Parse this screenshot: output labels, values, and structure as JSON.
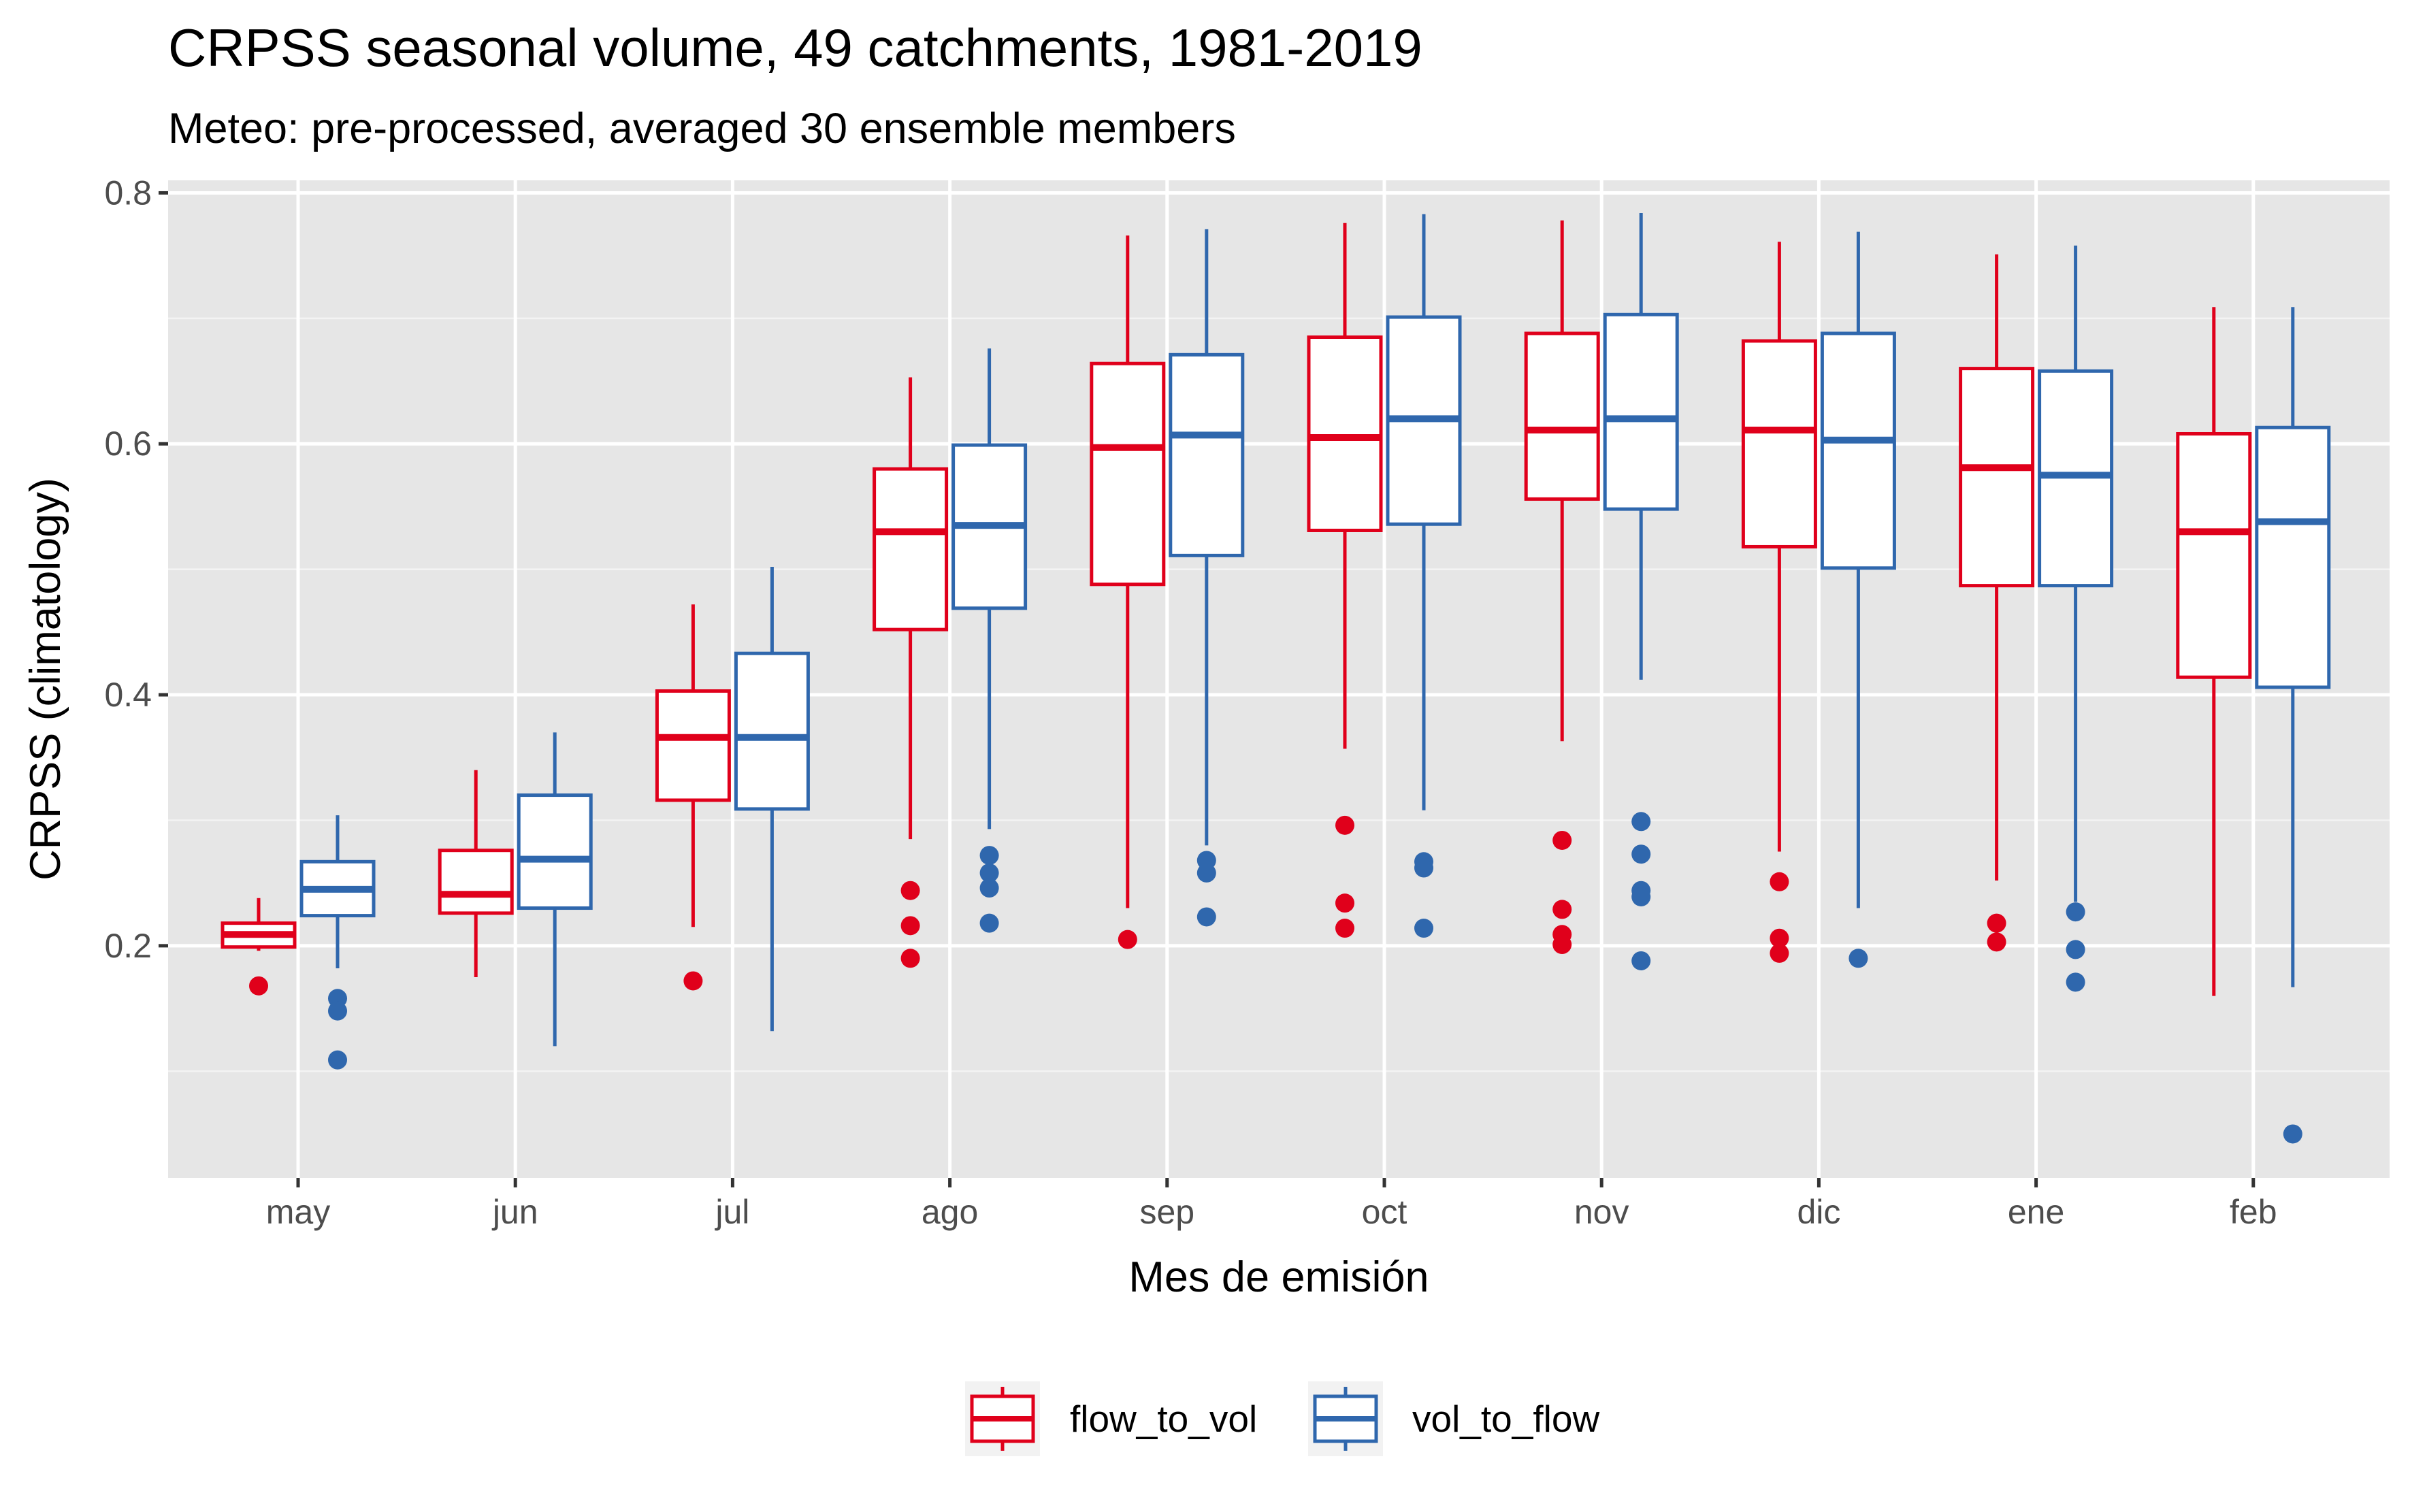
{
  "chart_data": {
    "type": "box",
    "title": "CRPSS seasonal volume, 49 catchments, 1981-2019",
    "subtitle": "Meteo: pre-processed, averaged 30 ensemble members",
    "xlabel": "Mes de emisión",
    "ylabel": "CRPSS (climatology)",
    "ylim": [
      0.015,
      0.81
    ],
    "y_ticks": [
      0.2,
      0.4,
      0.6,
      0.8
    ],
    "y_tick_labels": [
      "0.2",
      "0.4",
      "0.6",
      "0.8"
    ],
    "grid": true,
    "legend_position": "bottom",
    "categories": [
      "may",
      "jun",
      "jul",
      "ago",
      "sep",
      "oct",
      "nov",
      "dic",
      "ene",
      "feb"
    ],
    "series": [
      {
        "name": "flow_to_vol",
        "color": "#e0001b",
        "boxes": [
          {
            "min": 0.196,
            "q1": 0.199,
            "median": 0.209,
            "q3": 0.218,
            "max": 0.238,
            "outliers": [
              0.168
            ]
          },
          {
            "min": 0.175,
            "q1": 0.226,
            "median": 0.241,
            "q3": 0.276,
            "max": 0.34,
            "outliers": []
          },
          {
            "min": 0.215,
            "q1": 0.316,
            "median": 0.366,
            "q3": 0.403,
            "max": 0.472,
            "outliers": [
              0.172
            ]
          },
          {
            "min": 0.285,
            "q1": 0.452,
            "median": 0.53,
            "q3": 0.58,
            "max": 0.653,
            "outliers": [
              0.244,
              0.216,
              0.19
            ]
          },
          {
            "min": 0.23,
            "q1": 0.488,
            "median": 0.597,
            "q3": 0.664,
            "max": 0.766,
            "outliers": [
              0.205
            ]
          },
          {
            "min": 0.357,
            "q1": 0.531,
            "median": 0.605,
            "q3": 0.685,
            "max": 0.776,
            "outliers": [
              0.296,
              0.234,
              0.214
            ]
          },
          {
            "min": 0.363,
            "q1": 0.556,
            "median": 0.611,
            "q3": 0.688,
            "max": 0.778,
            "outliers": [
              0.284,
              0.229,
              0.209,
              0.201
            ]
          },
          {
            "min": 0.275,
            "q1": 0.518,
            "median": 0.611,
            "q3": 0.682,
            "max": 0.761,
            "outliers": [
              0.251,
              0.206,
              0.194
            ]
          },
          {
            "min": 0.252,
            "q1": 0.487,
            "median": 0.581,
            "q3": 0.66,
            "max": 0.751,
            "outliers": [
              0.218,
              0.203
            ]
          },
          {
            "min": 0.16,
            "q1": 0.414,
            "median": 0.53,
            "q3": 0.608,
            "max": 0.709,
            "outliers": []
          }
        ]
      },
      {
        "name": "vol_to_flow",
        "color": "#2f67ad",
        "boxes": [
          {
            "min": 0.182,
            "q1": 0.224,
            "median": 0.245,
            "q3": 0.267,
            "max": 0.304,
            "outliers": [
              0.158,
              0.148,
              0.109
            ]
          },
          {
            "min": 0.12,
            "q1": 0.23,
            "median": 0.269,
            "q3": 0.32,
            "max": 0.37,
            "outliers": []
          },
          {
            "min": 0.132,
            "q1": 0.309,
            "median": 0.366,
            "q3": 0.433,
            "max": 0.502,
            "outliers": []
          },
          {
            "min": 0.293,
            "q1": 0.469,
            "median": 0.535,
            "q3": 0.599,
            "max": 0.676,
            "outliers": [
              0.272,
              0.258,
              0.246,
              0.218
            ]
          },
          {
            "min": 0.28,
            "q1": 0.511,
            "median": 0.607,
            "q3": 0.671,
            "max": 0.771,
            "outliers": [
              0.268,
              0.258,
              0.223
            ]
          },
          {
            "min": 0.308,
            "q1": 0.536,
            "median": 0.62,
            "q3": 0.701,
            "max": 0.783,
            "outliers": [
              0.267,
              0.262,
              0.214
            ]
          },
          {
            "min": 0.412,
            "q1": 0.548,
            "median": 0.62,
            "q3": 0.703,
            "max": 0.784,
            "outliers": [
              0.299,
              0.273,
              0.244,
              0.239,
              0.188
            ]
          },
          {
            "min": 0.23,
            "q1": 0.501,
            "median": 0.603,
            "q3": 0.688,
            "max": 0.769,
            "outliers": [
              0.19
            ]
          },
          {
            "min": 0.235,
            "q1": 0.487,
            "median": 0.575,
            "q3": 0.658,
            "max": 0.758,
            "outliers": [
              0.227,
              0.197,
              0.171
            ]
          },
          {
            "min": 0.167,
            "q1": 0.406,
            "median": 0.538,
            "q3": 0.613,
            "max": 0.709,
            "outliers": [
              0.05
            ]
          }
        ]
      }
    ]
  }
}
